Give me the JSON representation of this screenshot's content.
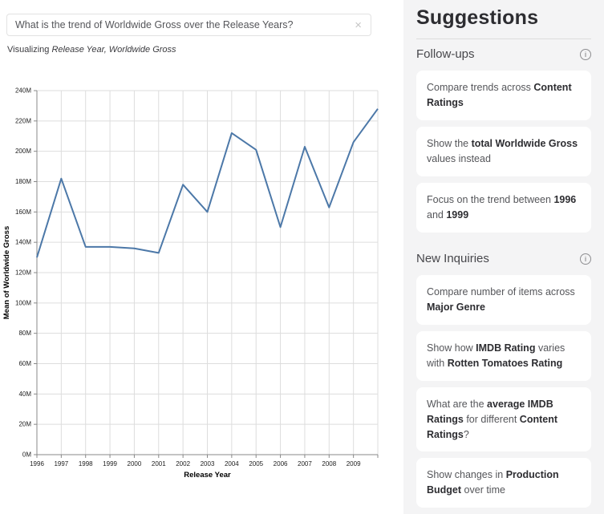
{
  "query_bar": {
    "value": "What is the trend of Worldwide Gross over the Release Years?",
    "clear_icon": "×"
  },
  "visualizing": {
    "prefix": "Visualizing ",
    "fields": "Release Year, Worldwide Gross"
  },
  "chart_data": {
    "type": "line",
    "series_name": "Mean of Worldwide Gross",
    "x": [
      1996,
      1997,
      1998,
      1999,
      2000,
      2001,
      2002,
      2003,
      2004,
      2005,
      2006,
      2007,
      2008,
      2009,
      2010
    ],
    "values_millions": [
      130,
      182,
      137,
      137,
      136,
      133,
      178,
      160,
      212,
      201,
      150,
      203,
      163,
      206,
      228
    ],
    "xlabel": "Release Year",
    "ylabel": "Mean of Worldwide Gross",
    "ylim_millions": [
      0,
      240
    ],
    "y_tick_step_millions": 20,
    "y_tick_labels": [
      "0M",
      "20M",
      "40M",
      "60M",
      "80M",
      "100M",
      "120M",
      "140M",
      "160M",
      "180M",
      "200M",
      "220M",
      "240M"
    ],
    "x_tick_labels": [
      "1996",
      "1997",
      "1998",
      "1999",
      "2000",
      "2001",
      "2002",
      "2003",
      "2004",
      "2005",
      "2006",
      "2007",
      "2008",
      "2009"
    ],
    "grid": true,
    "line_color": "#4c78a8",
    "grid_color": "#dddddd",
    "axis_color": "#888888",
    "tick_label_color": "#222222",
    "axis_title_color": "#000000"
  },
  "suggestions_panel": {
    "title": "Suggestions",
    "sections": [
      {
        "label": "Follow-ups",
        "info_icon": "i",
        "cards": [
          {
            "segments": [
              {
                "t": "Compare trends across "
              },
              {
                "t": "Content Ratings",
                "b": true
              }
            ]
          },
          {
            "segments": [
              {
                "t": "Show the "
              },
              {
                "t": "total Worldwide Gross",
                "b": true
              },
              {
                "t": " values instead"
              }
            ]
          },
          {
            "segments": [
              {
                "t": "Focus on the trend between "
              },
              {
                "t": "1996",
                "b": true
              },
              {
                "t": " and "
              },
              {
                "t": "1999",
                "b": true
              }
            ]
          }
        ]
      },
      {
        "label": "New Inquiries",
        "info_icon": "i",
        "cards": [
          {
            "segments": [
              {
                "t": "Compare number of items across "
              },
              {
                "t": "Major Genre",
                "b": true
              }
            ]
          },
          {
            "segments": [
              {
                "t": "Show how "
              },
              {
                "t": "IMDB Rating",
                "b": true
              },
              {
                "t": " varies with "
              },
              {
                "t": "Rotten Tomatoes Rating",
                "b": true
              }
            ]
          },
          {
            "segments": [
              {
                "t": "What are the "
              },
              {
                "t": "average IMDB Ratings",
                "b": true
              },
              {
                "t": " for different "
              },
              {
                "t": "Content Ratings",
                "b": true
              },
              {
                "t": "?"
              }
            ]
          },
          {
            "segments": [
              {
                "t": "Show changes in "
              },
              {
                "t": "Production Budget",
                "b": true
              },
              {
                "t": " over time"
              }
            ]
          }
        ]
      }
    ]
  }
}
